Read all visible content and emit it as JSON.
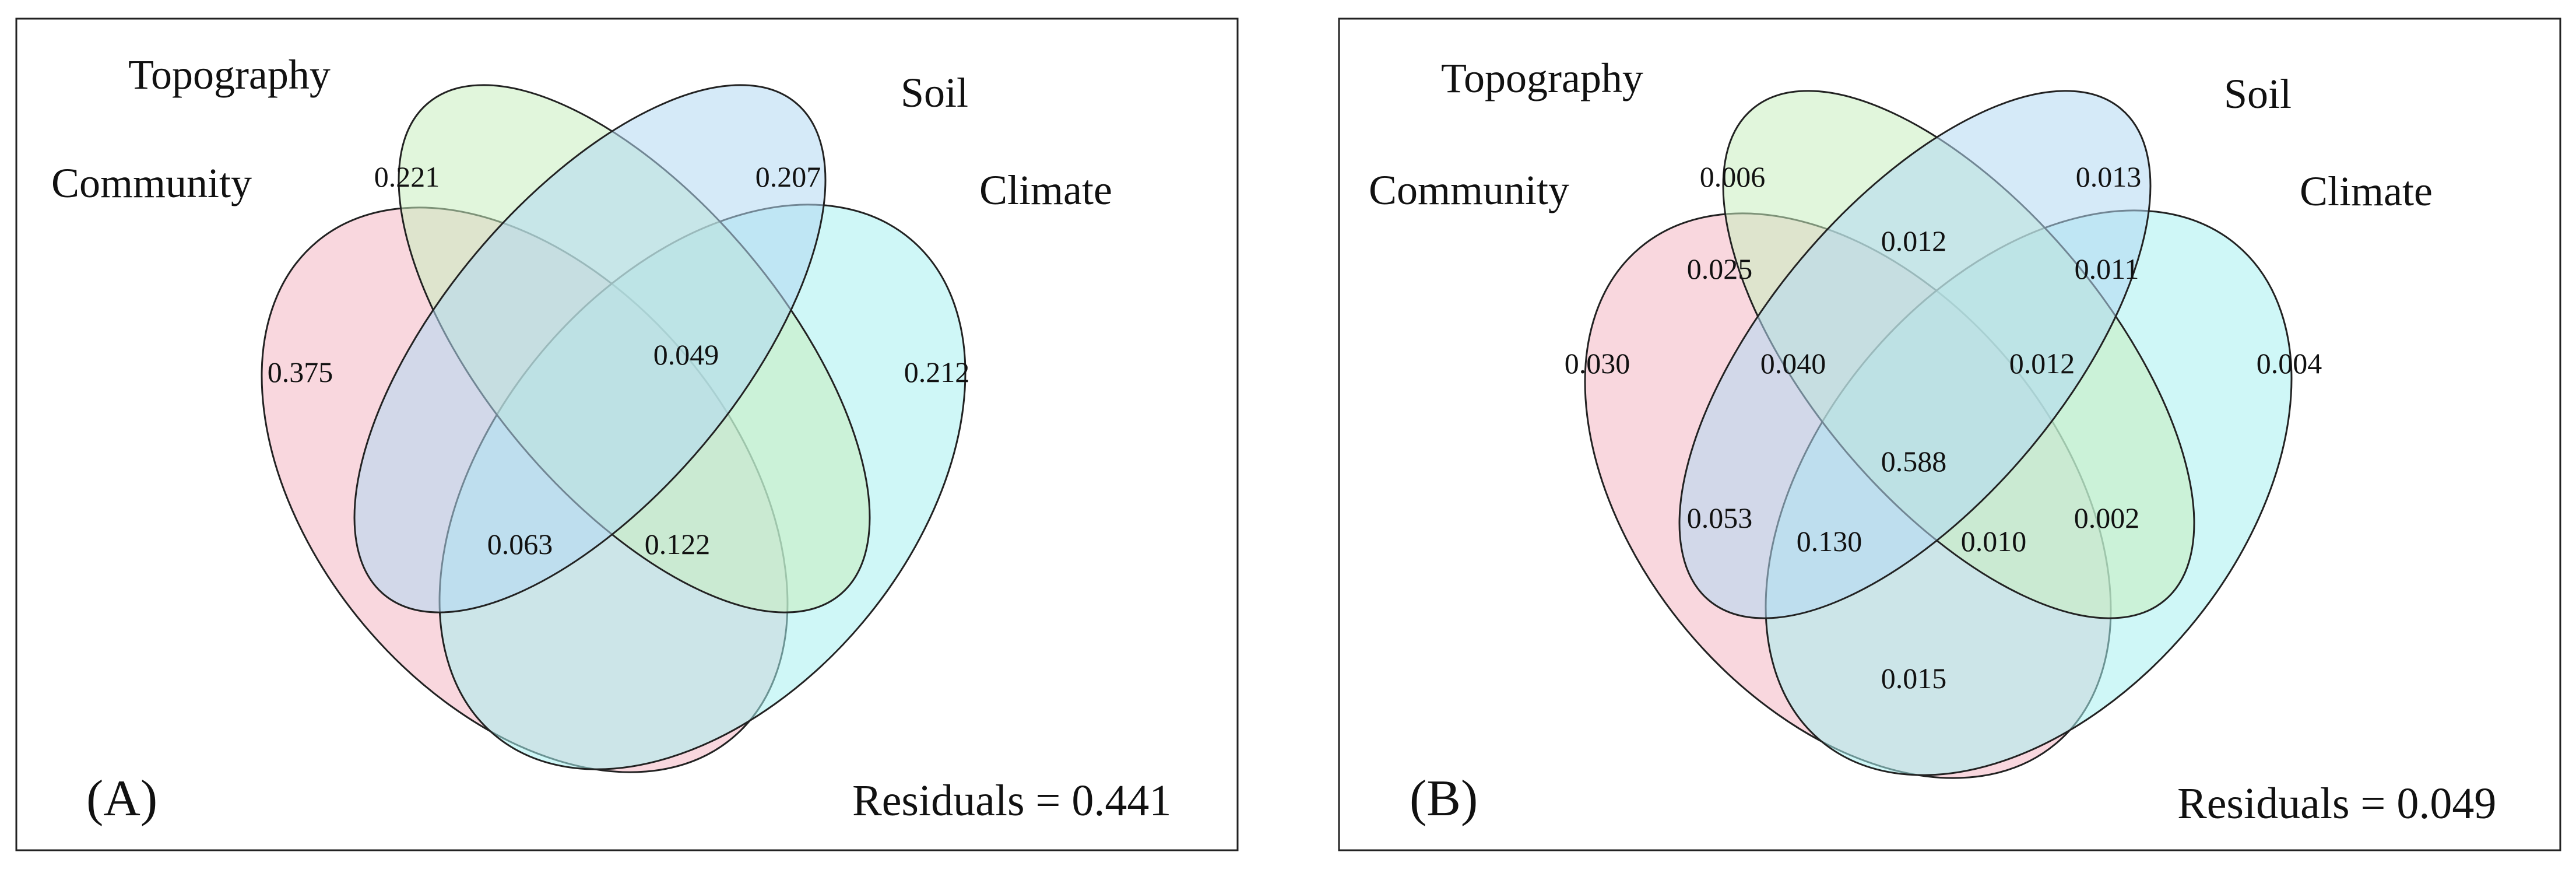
{
  "panels": [
    {
      "id": "A",
      "panel_label": "(A)",
      "residuals_label": "Residuals = 0.441",
      "sets": {
        "community": {
          "label": "Community",
          "color": "#f4b6c2"
        },
        "topography": {
          "label": "Topography",
          "color": "#c9efc0"
        },
        "soil": {
          "label": "Soil",
          "color": "#b3d8f2"
        },
        "climate": {
          "label": "Climate",
          "color": "#a8f0f0"
        }
      },
      "values": {
        "community_only": "0.375",
        "topography_only": "0.221",
        "soil_only": "0.207",
        "climate_only": "0.212",
        "topo_soil_climate": "0.049",
        "comm_soil": "0.063",
        "topo_climate": "0.122"
      }
    },
    {
      "id": "B",
      "panel_label": "(B)",
      "residuals_label": "Residuals = 0.049",
      "sets": {
        "community": {
          "label": "Community",
          "color": "#f4b6c2"
        },
        "topography": {
          "label": "Topography",
          "color": "#c9efc0"
        },
        "soil": {
          "label": "Soil",
          "color": "#b3d8f2"
        },
        "climate": {
          "label": "Climate",
          "color": "#a8f0f0"
        }
      },
      "values": {
        "topography_only": "0.006",
        "soil_only": "0.013",
        "community_only": "0.030",
        "climate_only": "0.004",
        "comm_topo": "0.025",
        "topo_soil": "0.012",
        "soil_climate": "0.011",
        "comm_topo_soil": "0.040",
        "topo_soil_climate": "0.012",
        "all_four": "0.588",
        "comm_soil": "0.053",
        "comm_soil_climate": "0.130",
        "comm_topo_climate": "0.010",
        "topo_climate": "0.002",
        "comm_climate": "0.015"
      }
    }
  ]
}
